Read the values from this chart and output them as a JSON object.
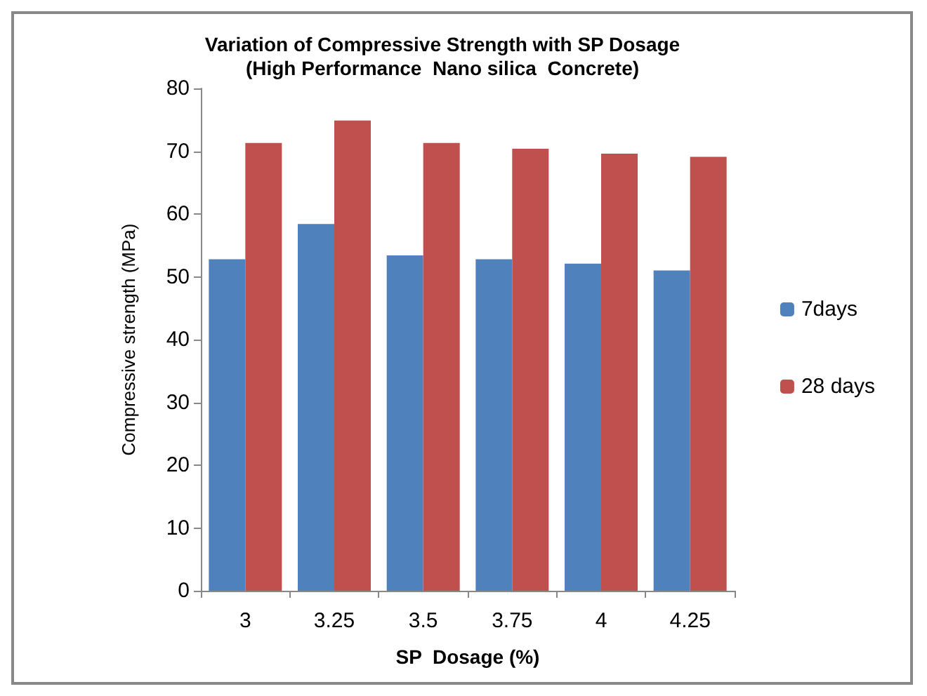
{
  "chart_data": {
    "type": "bar",
    "title": "Variation of Compressive Strength with SP Dosage\n(High Performance  Nano silica  Concrete)",
    "xlabel": "SP  Dosage (%)",
    "ylabel": "Compressive strength (MPa)",
    "categories": [
      "3",
      "3.25",
      "3.5",
      "3.75",
      "4",
      "4.25"
    ],
    "series": [
      {
        "name": "7days",
        "color": "#4f81bd",
        "values": [
          52.8,
          58.4,
          53.4,
          52.8,
          52.1,
          51.0
        ]
      },
      {
        "name": "28 days",
        "color": "#c0504d",
        "values": [
          71.3,
          74.9,
          71.3,
          70.4,
          69.6,
          69.1
        ]
      }
    ],
    "ylim": [
      0,
      80
    ],
    "yticks": [
      0,
      10,
      20,
      30,
      40,
      50,
      60,
      70,
      80
    ],
    "grid": false,
    "legend": "right"
  }
}
